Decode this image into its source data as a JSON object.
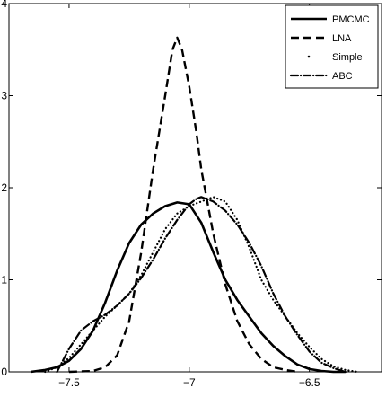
{
  "chart_data": {
    "type": "line",
    "title": "",
    "xlabel": "",
    "ylabel": "",
    "xlim": [
      -7.75,
      -6.2
    ],
    "ylim": [
      0,
      4
    ],
    "xticks": [
      -7.5,
      -7,
      -6.5
    ],
    "xtick_labels": [
      "−7.5",
      "−7",
      "−6.5"
    ],
    "yticks": [
      0,
      1,
      2,
      3,
      4
    ],
    "ytick_labels": [
      "0",
      "1",
      "2",
      "3",
      "4"
    ],
    "grid": false,
    "legend_position": "top-right",
    "series": [
      {
        "name": "PMCMC",
        "style": "solid",
        "x": [
          -7.66,
          -7.6,
          -7.55,
          -7.5,
          -7.45,
          -7.4,
          -7.35,
          -7.3,
          -7.25,
          -7.2,
          -7.15,
          -7.1,
          -7.05,
          -7.0,
          -6.95,
          -6.9,
          -6.85,
          -6.8,
          -6.75,
          -6.7,
          -6.65,
          -6.6,
          -6.55,
          -6.5,
          -6.45,
          -6.4,
          -6.35
        ],
        "values": [
          0.0,
          0.02,
          0.05,
          0.12,
          0.25,
          0.45,
          0.75,
          1.1,
          1.4,
          1.6,
          1.72,
          1.8,
          1.84,
          1.82,
          1.62,
          1.3,
          1.0,
          0.78,
          0.6,
          0.42,
          0.28,
          0.17,
          0.08,
          0.03,
          0.01,
          0.0,
          0.0
        ]
      },
      {
        "name": "LNA",
        "style": "dashed",
        "x": [
          -7.5,
          -7.4,
          -7.35,
          -7.3,
          -7.25,
          -7.2,
          -7.15,
          -7.1,
          -7.07,
          -7.05,
          -7.03,
          -7.0,
          -6.97,
          -6.95,
          -6.9,
          -6.85,
          -6.8,
          -6.75,
          -6.7,
          -6.65,
          -6.6,
          -6.55
        ],
        "values": [
          0.0,
          0.01,
          0.05,
          0.18,
          0.55,
          1.3,
          2.2,
          3.0,
          3.5,
          3.63,
          3.5,
          3.1,
          2.6,
          2.2,
          1.5,
          0.95,
          0.55,
          0.3,
          0.14,
          0.05,
          0.02,
          0.0
        ]
      },
      {
        "name": "Simple",
        "style": "dotted",
        "x": [
          -7.6,
          -7.55,
          -7.5,
          -7.45,
          -7.4,
          -7.35,
          -7.3,
          -7.25,
          -7.2,
          -7.15,
          -7.1,
          -7.05,
          -7.0,
          -6.95,
          -6.9,
          -6.85,
          -6.8,
          -6.75,
          -6.7,
          -6.65,
          -6.6,
          -6.55,
          -6.5,
          -6.45,
          -6.4,
          -6.35,
          -6.3
        ],
        "values": [
          0.0,
          0.05,
          0.15,
          0.3,
          0.45,
          0.6,
          0.72,
          0.85,
          1.05,
          1.3,
          1.55,
          1.72,
          1.8,
          1.85,
          1.9,
          1.85,
          1.65,
          1.35,
          1.0,
          0.78,
          0.6,
          0.42,
          0.27,
          0.14,
          0.06,
          0.02,
          0.0
        ]
      },
      {
        "name": "ABC",
        "style": "dashdot",
        "x": [
          -7.55,
          -7.5,
          -7.45,
          -7.4,
          -7.35,
          -7.3,
          -7.25,
          -7.2,
          -7.15,
          -7.1,
          -7.05,
          -7.0,
          -6.97,
          -6.95,
          -6.9,
          -6.85,
          -6.8,
          -6.75,
          -6.7,
          -6.65,
          -6.6,
          -6.55,
          -6.5,
          -6.45,
          -6.4,
          -6.35
        ],
        "values": [
          0.0,
          0.25,
          0.45,
          0.55,
          0.62,
          0.72,
          0.85,
          1.02,
          1.22,
          1.45,
          1.65,
          1.82,
          1.88,
          1.9,
          1.85,
          1.75,
          1.6,
          1.4,
          1.15,
          0.85,
          0.6,
          0.4,
          0.22,
          0.1,
          0.04,
          0.0
        ]
      }
    ]
  }
}
